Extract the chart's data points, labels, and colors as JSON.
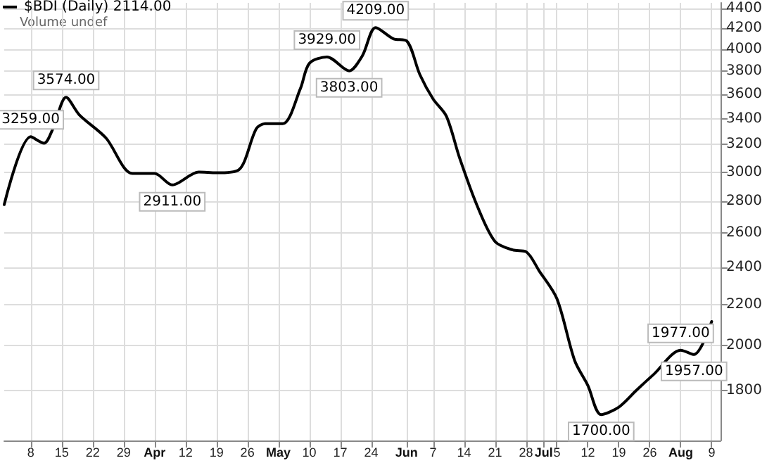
{
  "chart_data": {
    "type": "line",
    "annotations": [
      "Volume undef"
    ],
    "x": [
      "--03-02",
      "--03-08",
      "--03-11",
      "--03-13",
      "--03-16",
      "--03-19",
      "--03-25",
      "--03-31",
      "--04-05",
      "--04-09",
      "--04-15",
      "--04-19",
      "--04-24",
      "--04-28",
      "--04-30",
      "--05-04",
      "--05-08",
      "--05-10",
      "--05-14",
      "--05-19",
      "--05-22",
      "--05-25",
      "--05-29",
      "--06-01",
      "--06-04",
      "--06-07",
      "--06-10",
      "--06-13",
      "--06-17",
      "--06-21",
      "--06-25",
      "--06-28",
      "--07-01",
      "--07-05",
      "--07-09",
      "--07-12",
      "--07-15",
      "--07-19",
      "--07-23",
      "--07-27",
      "--08-02",
      "--08-05",
      "--08-09"
    ],
    "series": [
      {
        "name": "$BDI (Daily) 2114.00",
        "color": "#000000",
        "values": [
          2780,
          3259,
          3210,
          3320,
          3574,
          3430,
          3250,
          2990,
          2990,
          2911,
          3000,
          2995,
          3015,
          3320,
          3360,
          3360,
          3650,
          3870,
          3929,
          3803,
          3940,
          4209,
          4100,
          4080,
          3770,
          3560,
          3420,
          3100,
          2770,
          2550,
          2500,
          2490,
          2380,
          2230,
          1930,
          1820,
          1700,
          1730,
          1800,
          1870,
          1977,
          1957,
          2114
        ],
        "value_labels": [
          null,
          "3259.00",
          null,
          null,
          "3574.00",
          null,
          null,
          null,
          null,
          "2911.00",
          null,
          null,
          null,
          null,
          null,
          null,
          null,
          null,
          "3929.00",
          "3803.00",
          null,
          "4209.00",
          null,
          null,
          null,
          null,
          null,
          null,
          null,
          null,
          null,
          null,
          null,
          null,
          null,
          null,
          "1700.00",
          null,
          null,
          null,
          "1977.00",
          "1957.00",
          null
        ]
      }
    ],
    "xlim": [
      "--03-02",
      "--08-11"
    ],
    "xticks": [
      {
        "value": "--03-08",
        "label": "8"
      },
      {
        "value": "--03-15",
        "label": "15"
      },
      {
        "value": "--03-22",
        "label": "22"
      },
      {
        "value": "--03-29",
        "label": "29"
      },
      {
        "value": "--04-05",
        "label": "Apr"
      },
      {
        "value": "--04-12",
        "label": "12"
      },
      {
        "value": "--04-19",
        "label": "19"
      },
      {
        "value": "--04-26",
        "label": "26"
      },
      {
        "value": "--05-03",
        "label": "May"
      },
      {
        "value": "--05-10",
        "label": "10"
      },
      {
        "value": "--05-17",
        "label": "17"
      },
      {
        "value": "--05-24",
        "label": "24"
      },
      {
        "value": "--06-01",
        "label": "Jun"
      },
      {
        "value": "--06-07",
        "label": "7"
      },
      {
        "value": "--06-14",
        "label": "14"
      },
      {
        "value": "--06-21",
        "label": "21"
      },
      {
        "value": "--06-28",
        "label": "28"
      },
      {
        "value": "--07-02",
        "label": "Jul"
      },
      {
        "value": "--07-05",
        "label": "5"
      },
      {
        "value": "--07-12",
        "label": "12"
      },
      {
        "value": "--07-19",
        "label": "19"
      },
      {
        "value": "--07-26",
        "label": "26"
      },
      {
        "value": "--08-02",
        "label": "Aug"
      },
      {
        "value": "--08-09",
        "label": "9"
      }
    ],
    "ylim": [
      1600,
      4460
    ],
    "yticks": [
      1800,
      2000,
      2200,
      2400,
      2600,
      2800,
      3000,
      3200,
      3400,
      3600,
      3800,
      4000,
      4200,
      4400
    ],
    "log": "y",
    "grid": true,
    "legend": "top left",
    "marker": "none",
    "line_style": "solid"
  }
}
